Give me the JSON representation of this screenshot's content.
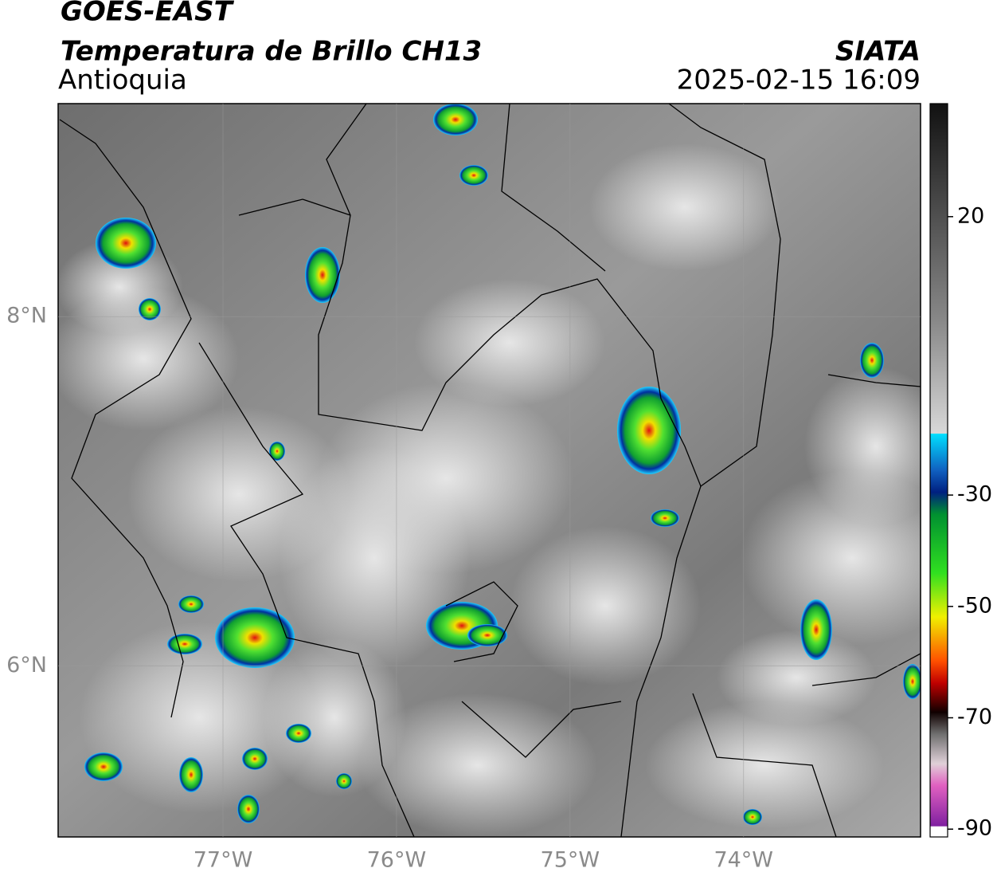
{
  "header": {
    "title": "GOES-EAST",
    "subtitle": "Temperatura de Brillo CH13",
    "region": "Antioquia",
    "source": "SIATA",
    "datetime": "2025-02-15 16:09"
  },
  "map": {
    "xlim": [
      -77.95,
      -72.98
    ],
    "ylim": [
      5.02,
      9.22
    ],
    "xticks": [
      {
        "value": -77,
        "label": "77°W"
      },
      {
        "value": -76,
        "label": "76°W"
      },
      {
        "value": -75,
        "label": "75°W"
      },
      {
        "value": -74,
        "label": "74°W"
      }
    ],
    "yticks": [
      {
        "value": 8,
        "label": "8°N"
      },
      {
        "value": 6,
        "label": "6°N"
      }
    ]
  },
  "colorbar": {
    "lim": [
      -91.4,
      40.3
    ],
    "ticks": [
      20,
      -30,
      -50,
      -70,
      -90
    ]
  }
}
